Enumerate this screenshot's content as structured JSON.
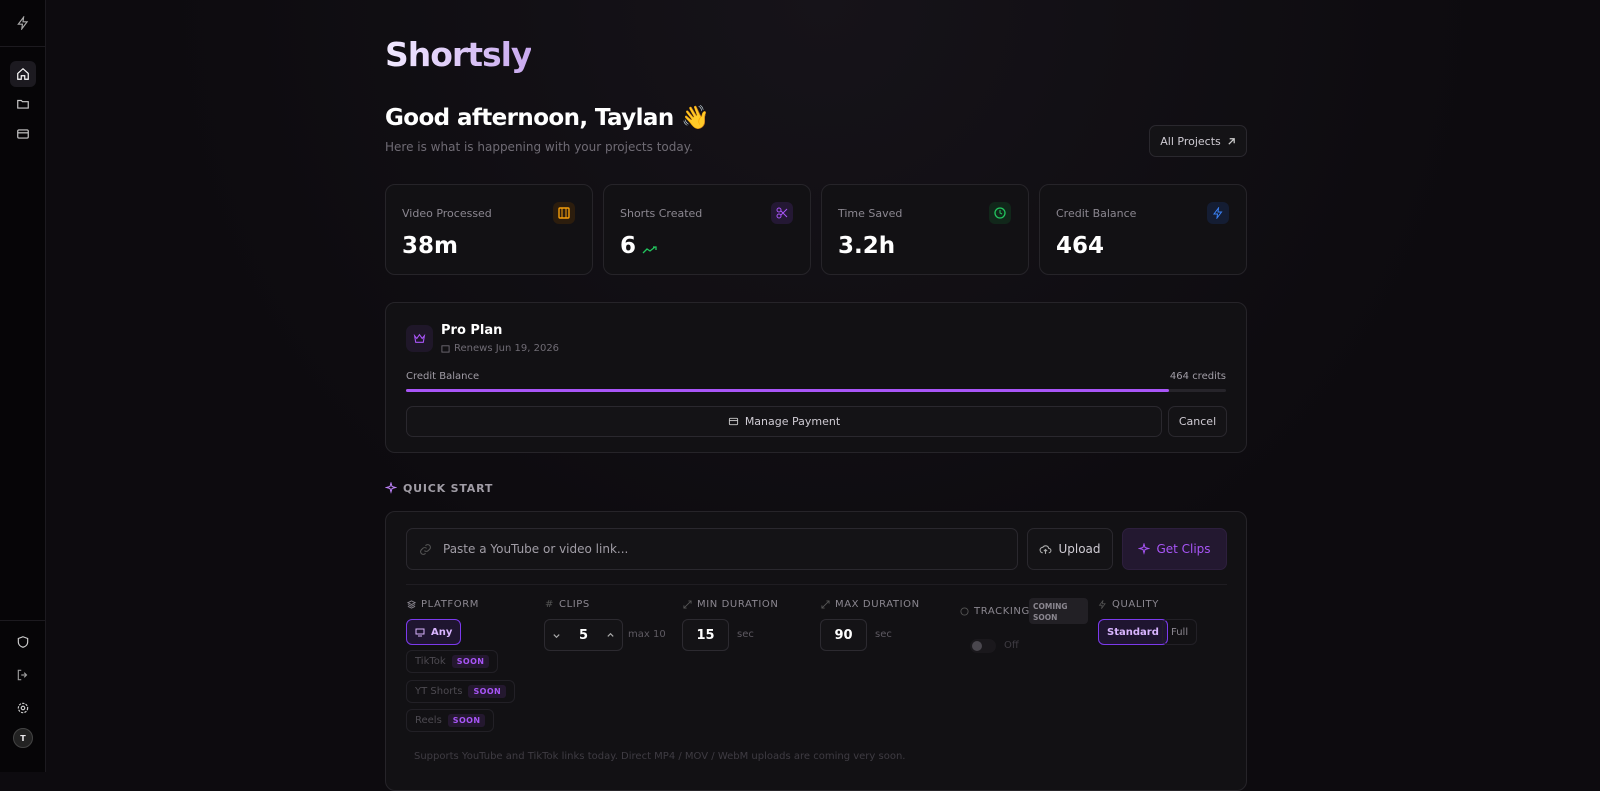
{
  "sidebar": {
    "avatar": "T"
  },
  "header": {
    "brand": "Shortsly",
    "greeting": "Good afternoon, Taylan 👋",
    "subtitle": "Here is what is happening with your projects today.",
    "all_projects": "All Projects"
  },
  "stats": [
    {
      "label": "Video Processed",
      "value": "38m"
    },
    {
      "label": "Shorts Created",
      "value": "6"
    },
    {
      "label": "Time Saved",
      "value": "3.2h"
    },
    {
      "label": "Credit Balance",
      "value": "464"
    }
  ],
  "plan": {
    "name": "Pro Plan",
    "renews": "Renews Jun 19, 2026",
    "balance_label": "Credit Balance",
    "credits": "464 credits",
    "progress": 93,
    "manage": "Manage Payment",
    "cancel": "Cancel"
  },
  "quick_start": {
    "title": "QUICK START",
    "placeholder": "Paste a YouTube or video link...",
    "upload": "Upload",
    "get_clips": "Get Clips",
    "platform": {
      "label": "PLATFORM",
      "options": [
        {
          "name": "Any"
        },
        {
          "name": "TikTok",
          "badge": "SOON"
        },
        {
          "name": "YT Shorts",
          "badge": "SOON"
        },
        {
          "name": "Reels",
          "badge": "SOON"
        }
      ]
    },
    "clips": {
      "label": "CLIPS",
      "value": "5",
      "max": "max 10"
    },
    "min_duration": {
      "label": "MIN DURATION",
      "value": "15",
      "unit": "sec"
    },
    "max_duration": {
      "label": "MAX DURATION",
      "value": "90",
      "unit": "sec"
    },
    "tracking": {
      "label": "TRACKING",
      "badge": "COMING SOON",
      "state": "Off"
    },
    "quality": {
      "label": "QUALITY",
      "options": [
        "Standard",
        "Full"
      ]
    },
    "note": "Supports YouTube and TikTok links today. Direct MP4 / MOV / WebM uploads are coming very soon."
  }
}
